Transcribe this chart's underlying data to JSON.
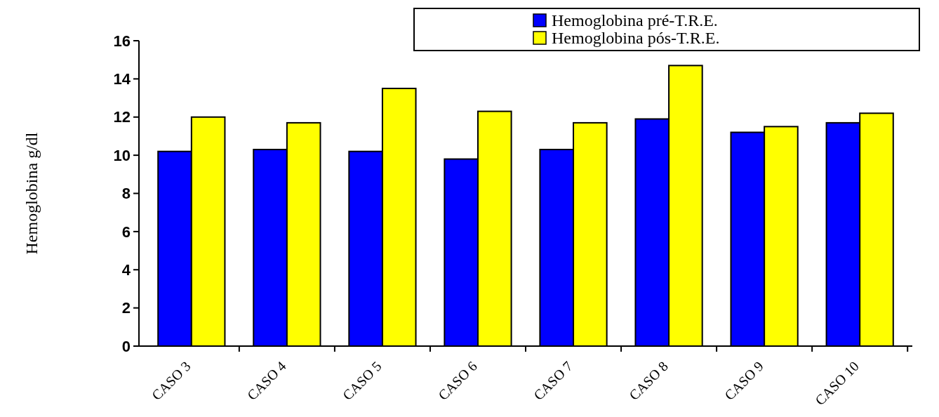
{
  "chart_data": {
    "type": "bar",
    "ylabel": "Hemoglobina  g/dl",
    "categories": [
      "CASO 3",
      "CASO 4",
      "CASO 5",
      "CASO 6",
      "CASO 7",
      "CASO 8",
      "CASO 9",
      "CASO 10"
    ],
    "series": [
      {
        "name": "Hemoglobina pré-T.R.E.",
        "color": "#0000ff",
        "values": [
          10.2,
          10.3,
          10.2,
          9.8,
          10.3,
          11.9,
          11.2,
          11.7
        ]
      },
      {
        "name": "Hemoglobina pós-T.R.E.",
        "color": "#ffff00",
        "values": [
          12.0,
          11.7,
          13.5,
          12.3,
          11.7,
          14.7,
          11.5,
          12.2
        ]
      }
    ],
    "ylim": [
      0,
      16
    ],
    "yticks": [
      0,
      2,
      4,
      6,
      8,
      10,
      12,
      14,
      16
    ],
    "legend": "top right",
    "grid": false
  }
}
